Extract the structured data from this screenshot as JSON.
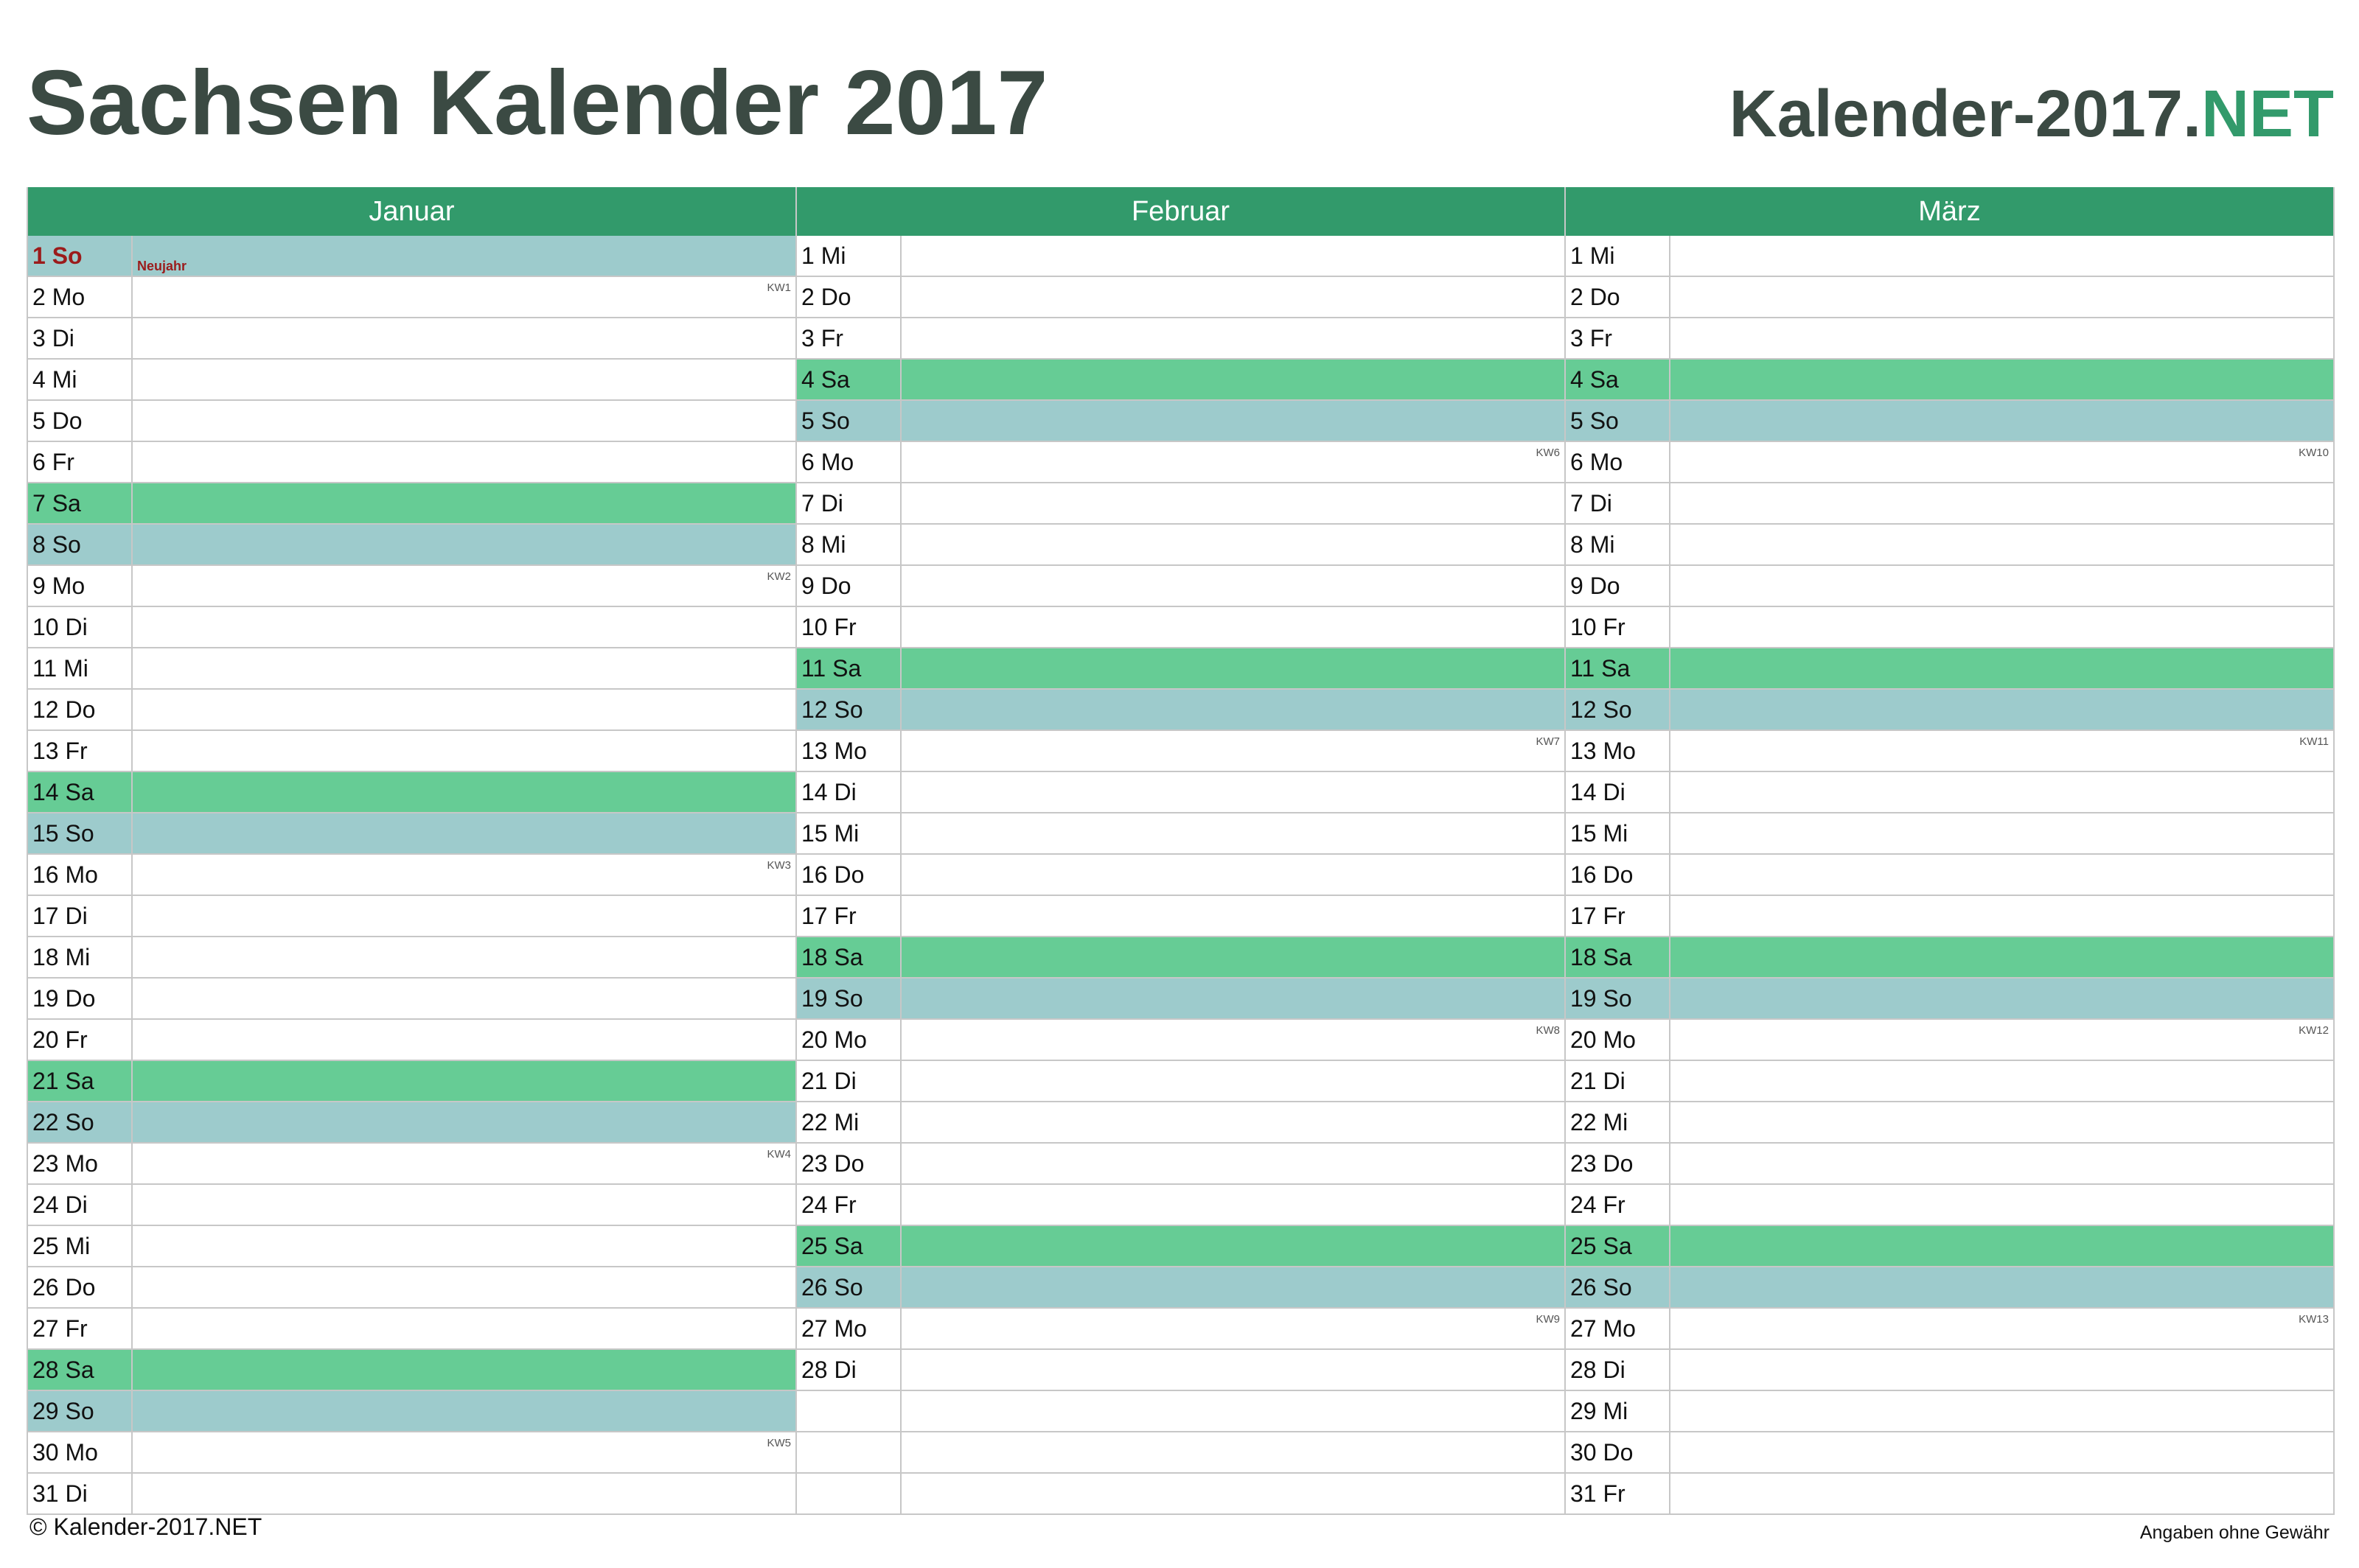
{
  "header": {
    "title": "Sachsen Kalender 2017",
    "brand_main": "Kalender-2017.",
    "brand_net": "NET"
  },
  "colors": {
    "header_green": "#329a6b",
    "saturday": "#66cc95",
    "sunday": "#9dcbcc",
    "holiday_text": "#9b1b1b",
    "title_text": "#3b4a43"
  },
  "months": [
    {
      "name": "Januar",
      "days": [
        {
          "label": "1 So",
          "type": "holiday",
          "holiday": "Neujahr"
        },
        {
          "label": "2 Mo",
          "type": "weekday",
          "kw": "KW1"
        },
        {
          "label": "3 Di",
          "type": "weekday"
        },
        {
          "label": "4 Mi",
          "type": "weekday"
        },
        {
          "label": "5 Do",
          "type": "weekday"
        },
        {
          "label": "6 Fr",
          "type": "weekday"
        },
        {
          "label": "7 Sa",
          "type": "sa"
        },
        {
          "label": "8 So",
          "type": "so"
        },
        {
          "label": "9 Mo",
          "type": "weekday",
          "kw": "KW2"
        },
        {
          "label": "10 Di",
          "type": "weekday"
        },
        {
          "label": "11 Mi",
          "type": "weekday"
        },
        {
          "label": "12 Do",
          "type": "weekday"
        },
        {
          "label": "13 Fr",
          "type": "weekday"
        },
        {
          "label": "14 Sa",
          "type": "sa"
        },
        {
          "label": "15 So",
          "type": "so"
        },
        {
          "label": "16 Mo",
          "type": "weekday",
          "kw": "KW3"
        },
        {
          "label": "17 Di",
          "type": "weekday"
        },
        {
          "label": "18 Mi",
          "type": "weekday"
        },
        {
          "label": "19 Do",
          "type": "weekday"
        },
        {
          "label": "20 Fr",
          "type": "weekday"
        },
        {
          "label": "21 Sa",
          "type": "sa"
        },
        {
          "label": "22 So",
          "type": "so"
        },
        {
          "label": "23 Mo",
          "type": "weekday",
          "kw": "KW4"
        },
        {
          "label": "24 Di",
          "type": "weekday"
        },
        {
          "label": "25 Mi",
          "type": "weekday"
        },
        {
          "label": "26 Do",
          "type": "weekday"
        },
        {
          "label": "27 Fr",
          "type": "weekday"
        },
        {
          "label": "28 Sa",
          "type": "sa"
        },
        {
          "label": "29 So",
          "type": "so"
        },
        {
          "label": "30 Mo",
          "type": "weekday",
          "kw": "KW5"
        },
        {
          "label": "31 Di",
          "type": "weekday"
        }
      ]
    },
    {
      "name": "Februar",
      "days": [
        {
          "label": "1 Mi",
          "type": "weekday"
        },
        {
          "label": "2 Do",
          "type": "weekday"
        },
        {
          "label": "3 Fr",
          "type": "weekday"
        },
        {
          "label": "4 Sa",
          "type": "sa"
        },
        {
          "label": "5 So",
          "type": "so"
        },
        {
          "label": "6 Mo",
          "type": "weekday",
          "kw": "KW6"
        },
        {
          "label": "7 Di",
          "type": "weekday"
        },
        {
          "label": "8 Mi",
          "type": "weekday"
        },
        {
          "label": "9 Do",
          "type": "weekday"
        },
        {
          "label": "10 Fr",
          "type": "weekday"
        },
        {
          "label": "11 Sa",
          "type": "sa"
        },
        {
          "label": "12 So",
          "type": "so"
        },
        {
          "label": "13 Mo",
          "type": "weekday",
          "kw": "KW7"
        },
        {
          "label": "14 Di",
          "type": "weekday"
        },
        {
          "label": "15 Mi",
          "type": "weekday"
        },
        {
          "label": "16 Do",
          "type": "weekday"
        },
        {
          "label": "17 Fr",
          "type": "weekday"
        },
        {
          "label": "18 Sa",
          "type": "sa"
        },
        {
          "label": "19 So",
          "type": "so"
        },
        {
          "label": "20 Mo",
          "type": "weekday",
          "kw": "KW8"
        },
        {
          "label": "21 Di",
          "type": "weekday"
        },
        {
          "label": "22 Mi",
          "type": "weekday"
        },
        {
          "label": "23 Do",
          "type": "weekday"
        },
        {
          "label": "24 Fr",
          "type": "weekday"
        },
        {
          "label": "25 Sa",
          "type": "sa"
        },
        {
          "label": "26 So",
          "type": "so"
        },
        {
          "label": "27 Mo",
          "type": "weekday",
          "kw": "KW9"
        },
        {
          "label": "28 Di",
          "type": "weekday"
        },
        {
          "label": "",
          "type": "empty"
        },
        {
          "label": "",
          "type": "empty"
        },
        {
          "label": "",
          "type": "empty"
        }
      ]
    },
    {
      "name": "März",
      "days": [
        {
          "label": "1 Mi",
          "type": "weekday"
        },
        {
          "label": "2 Do",
          "type": "weekday"
        },
        {
          "label": "3 Fr",
          "type": "weekday"
        },
        {
          "label": "4 Sa",
          "type": "sa"
        },
        {
          "label": "5 So",
          "type": "so"
        },
        {
          "label": "6 Mo",
          "type": "weekday",
          "kw": "KW10"
        },
        {
          "label": "7 Di",
          "type": "weekday"
        },
        {
          "label": "8 Mi",
          "type": "weekday"
        },
        {
          "label": "9 Do",
          "type": "weekday"
        },
        {
          "label": "10 Fr",
          "type": "weekday"
        },
        {
          "label": "11 Sa",
          "type": "sa"
        },
        {
          "label": "12 So",
          "type": "so"
        },
        {
          "label": "13 Mo",
          "type": "weekday",
          "kw": "KW11"
        },
        {
          "label": "14 Di",
          "type": "weekday"
        },
        {
          "label": "15 Mi",
          "type": "weekday"
        },
        {
          "label": "16 Do",
          "type": "weekday"
        },
        {
          "label": "17 Fr",
          "type": "weekday"
        },
        {
          "label": "18 Sa",
          "type": "sa"
        },
        {
          "label": "19 So",
          "type": "so"
        },
        {
          "label": "20 Mo",
          "type": "weekday",
          "kw": "KW12"
        },
        {
          "label": "21 Di",
          "type": "weekday"
        },
        {
          "label": "22 Mi",
          "type": "weekday"
        },
        {
          "label": "23 Do",
          "type": "weekday"
        },
        {
          "label": "24 Fr",
          "type": "weekday"
        },
        {
          "label": "25 Sa",
          "type": "sa"
        },
        {
          "label": "26 So",
          "type": "so"
        },
        {
          "label": "27 Mo",
          "type": "weekday",
          "kw": "KW13"
        },
        {
          "label": "28 Di",
          "type": "weekday"
        },
        {
          "label": "29 Mi",
          "type": "weekday"
        },
        {
          "label": "30 Do",
          "type": "weekday"
        },
        {
          "label": "31 Fr",
          "type": "weekday"
        }
      ]
    }
  ],
  "footer": {
    "copyright": "© Kalender-2017.NET",
    "disclaimer": "Angaben ohne Gewähr"
  }
}
